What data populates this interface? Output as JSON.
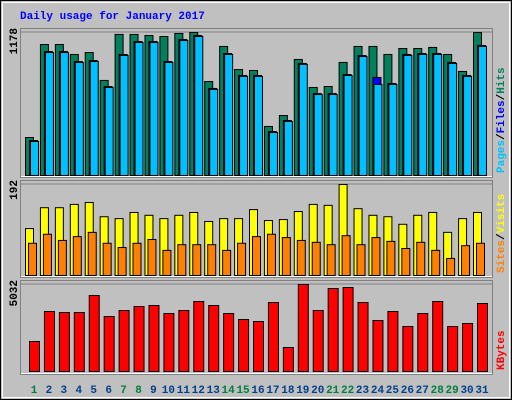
{
  "chart_data": [
    {
      "type": "bar",
      "title": "Daily usage for January 2017",
      "ylim": [
        0,
        1178
      ],
      "yticks": [
        1178
      ],
      "grid": true,
      "series": [
        {
          "name": "Hits",
          "color": "#00805c",
          "values": [
            313,
            1079,
            1079,
            997,
            1013,
            783,
            1162,
            1162,
            1153,
            1145,
            1170,
            1178,
            774,
            1063,
            873,
            865,
            404,
            494,
            956,
            725,
            733,
            931,
            1063,
            1063,
            997,
            1046,
            1046,
            1055,
            997,
            857,
            1178
          ]
        },
        {
          "name": "Files",
          "color": "#0000ff",
          "values": [
            288,
            1021,
            1021,
            939,
            947,
            733,
            997,
            1104,
            1104,
            939,
            1120,
            1153,
            717,
            1005,
            824,
            824,
            362,
            453,
            923,
            675,
            675,
            832,
            988,
            808,
            758,
            997,
            1005,
            1005,
            931,
            824,
            1071
          ]
        },
        {
          "name": "Pages",
          "color": "#00c0ff",
          "values": [
            280,
            1013,
            1013,
            931,
            939,
            725,
            989,
            1096,
            1096,
            931,
            1112,
            1145,
            709,
            997,
            816,
            816,
            354,
            445,
            915,
            667,
            667,
            824,
            980,
            750,
            750,
            989,
            997,
            997,
            923,
            816,
            1063
          ]
        }
      ]
    },
    {
      "type": "bar",
      "ylim": [
        0,
        192
      ],
      "yticks": [
        192
      ],
      "grid": true,
      "series": [
        {
          "name": "Visits",
          "color": "#ffff00",
          "values": [
            99,
            143,
            143,
            150,
            154,
            124,
            120,
            133,
            127,
            120,
            127,
            133,
            114,
            120,
            120,
            139,
            116,
            118,
            135,
            150,
            148,
            192,
            141,
            127,
            124,
            108,
            127,
            133,
            91,
            120,
            133
          ]
        },
        {
          "name": "Sites",
          "color": "#ff8000",
          "values": [
            68,
            87,
            74,
            82,
            91,
            68,
            59,
            68,
            76,
            53,
            65,
            65,
            65,
            53,
            68,
            82,
            87,
            80,
            74,
            70,
            65,
            84,
            65,
            80,
            72,
            57,
            70,
            53,
            36,
            63,
            68
          ]
        }
      ]
    },
    {
      "type": "bar",
      "ylim": [
        0,
        5032
      ],
      "yticks": [
        5032
      ],
      "grid": true,
      "categories": [
        "1",
        "2",
        "3",
        "4",
        "5",
        "6",
        "7",
        "8",
        "9",
        "10",
        "11",
        "12",
        "13",
        "14",
        "15",
        "16",
        "17",
        "18",
        "19",
        "20",
        "21",
        "22",
        "23",
        "24",
        "25",
        "26",
        "27",
        "28",
        "29",
        "30",
        "31"
      ],
      "category_colors": [
        "#008040",
        "#00408c",
        "#00408c",
        "#00408c",
        "#00408c",
        "#00408c",
        "#008040",
        "#008040",
        "#00408c",
        "#00408c",
        "#00408c",
        "#00408c",
        "#00408c",
        "#008040",
        "#008040",
        "#00408c",
        "#00408c",
        "#00408c",
        "#00408c",
        "#00408c",
        "#008040",
        "#008040",
        "#00408c",
        "#00408c",
        "#00408c",
        "#00408c",
        "#00408c",
        "#008040",
        "#008040",
        "#00408c",
        "#00408c"
      ],
      "series": [
        {
          "name": "KBytes",
          "color": "#ff0000",
          "values": [
            1735,
            3470,
            3412,
            3412,
            4395,
            3181,
            3528,
            3759,
            3817,
            3354,
            3528,
            4048,
            3817,
            3354,
            3007,
            2892,
            3991,
            1388,
            5032,
            3528,
            4801,
            4858,
            3991,
            2950,
            3470,
            2603,
            3354,
            4048,
            2603,
            2776,
            3933
          ]
        }
      ]
    }
  ],
  "legend_separator": "/"
}
